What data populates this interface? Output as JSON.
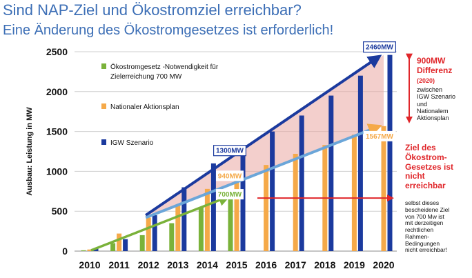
{
  "title": "Sind NAP-Ziel und Ökostromziel erreichbar?",
  "subtitle": "Eine Änderung des Ökostromgesetzes ist erforderlich!",
  "chart_data": {
    "type": "bar",
    "ylabel": "Ausbau: Leistung in MW",
    "xlabel": "",
    "ylim": [
      0,
      2500
    ],
    "yticks": [
      0,
      500,
      1000,
      1500,
      2000,
      2500
    ],
    "categories": [
      "2010",
      "2011",
      "2012",
      "2013",
      "2014",
      "2015",
      "2016",
      "2017",
      "2018",
      "2019",
      "2020"
    ],
    "series": [
      {
        "name": "Ökostromgesetz -Notwendigkeit für Zielerreichung 700 MW",
        "color": "#7ab23a",
        "values": [
          10,
          100,
          200,
          350,
          550,
          700,
          null,
          null,
          null,
          null,
          null
        ]
      },
      {
        "name": "Nationaler Aktionsplan",
        "color": "#f5a949",
        "values": [
          20,
          220,
          420,
          580,
          780,
          940,
          1080,
          1220,
          1330,
          1460,
          1567
        ]
      },
      {
        "name": "IGW Szenario",
        "color": "#1b3a9e",
        "values": [
          30,
          150,
          450,
          800,
          1100,
          1300,
          1500,
          1700,
          1950,
          2200,
          2460
        ]
      }
    ],
    "grid": true,
    "legend": "top-left",
    "labels": [
      {
        "text": "2460MW",
        "color": "#1b3a9e"
      },
      {
        "text": "1567MW",
        "color": "#f5a949"
      },
      {
        "text": "1300MW",
        "color": "#1b3a9e"
      },
      {
        "text": "940MW",
        "color": "#f5a949"
      },
      {
        "text": "700MW",
        "color": "#7ab23a"
      }
    ]
  },
  "annotations": {
    "difference_title": [
      "900MW",
      "Differenz"
    ],
    "difference_year": "(2020)",
    "difference_text": [
      "zwischen",
      "IGW Szenario",
      "und",
      "Nationalem",
      "Aktionsplan"
    ],
    "goal_title": [
      "Ziel des",
      "Ökostrom-",
      "Gesetzes ist",
      "nicht",
      "erreichbar"
    ],
    "goal_text": [
      "selbst dieses",
      "bescheidene Ziel",
      "von 700 Mw ist",
      "mit derzeitigen",
      "rechtlichen",
      "Rahmen-",
      "Bedingungen",
      "nicht erreichbar!"
    ]
  }
}
